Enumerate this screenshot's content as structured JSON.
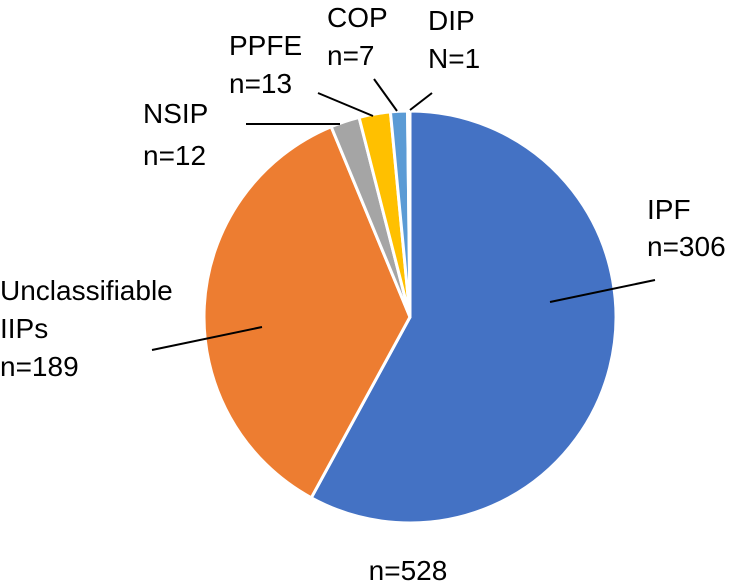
{
  "chart_data": {
    "type": "pie",
    "total_label": "n=528",
    "start_angle_deg": 0,
    "direction": "clockwise",
    "slices": [
      {
        "name": "IPF",
        "count_label": "n=306",
        "value": 306,
        "color": "#4472C4"
      },
      {
        "name": "Unclassifiable",
        "name2": "IIPs",
        "count_label": "n=189",
        "value": 189,
        "color": "#ED7D31"
      },
      {
        "name": "NSIP",
        "count_label": "n=12",
        "value": 12,
        "color": "#A5A5A5"
      },
      {
        "name": "PPFE",
        "count_label": "n=13",
        "value": 13,
        "color": "#FFC000"
      },
      {
        "name": "COP",
        "count_label": "n=7",
        "value": 7,
        "color": "#5B9BD5"
      },
      {
        "name": "DIP",
        "count_label": "N=1",
        "value": 1,
        "color": "#4472C4"
      }
    ]
  }
}
